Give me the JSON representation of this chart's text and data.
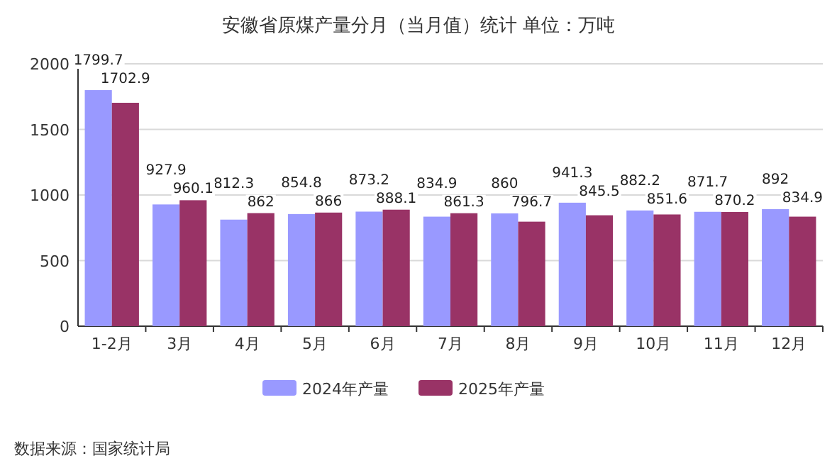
{
  "chart_data": {
    "type": "bar",
    "title": "安徽省原煤产量分月（当月值）统计  单位：万吨",
    "categories": [
      "1-2月",
      "3月",
      "4月",
      "5月",
      "6月",
      "7月",
      "8月",
      "9月",
      "10月",
      "11月",
      "12月"
    ],
    "series": [
      {
        "name": "2024年产量",
        "color": "#9999ff",
        "values": [
          1799.7,
          927.9,
          812.3,
          854.8,
          873.2,
          834.9,
          860,
          941.3,
          882.2,
          871.7,
          892
        ]
      },
      {
        "name": "2025年产量",
        "color": "#993366",
        "values": [
          1702.9,
          960.1,
          862,
          866,
          888.1,
          861.3,
          796.7,
          845.5,
          851.6,
          870.2,
          834.9
        ]
      }
    ],
    "ylim": [
      0,
      2000
    ],
    "yticks": [
      0,
      500,
      1000,
      1500,
      2000
    ],
    "grid": "y",
    "legend": "bottom",
    "data_labels": true,
    "annotations": [
      "数据来源：国家统计局"
    ]
  }
}
